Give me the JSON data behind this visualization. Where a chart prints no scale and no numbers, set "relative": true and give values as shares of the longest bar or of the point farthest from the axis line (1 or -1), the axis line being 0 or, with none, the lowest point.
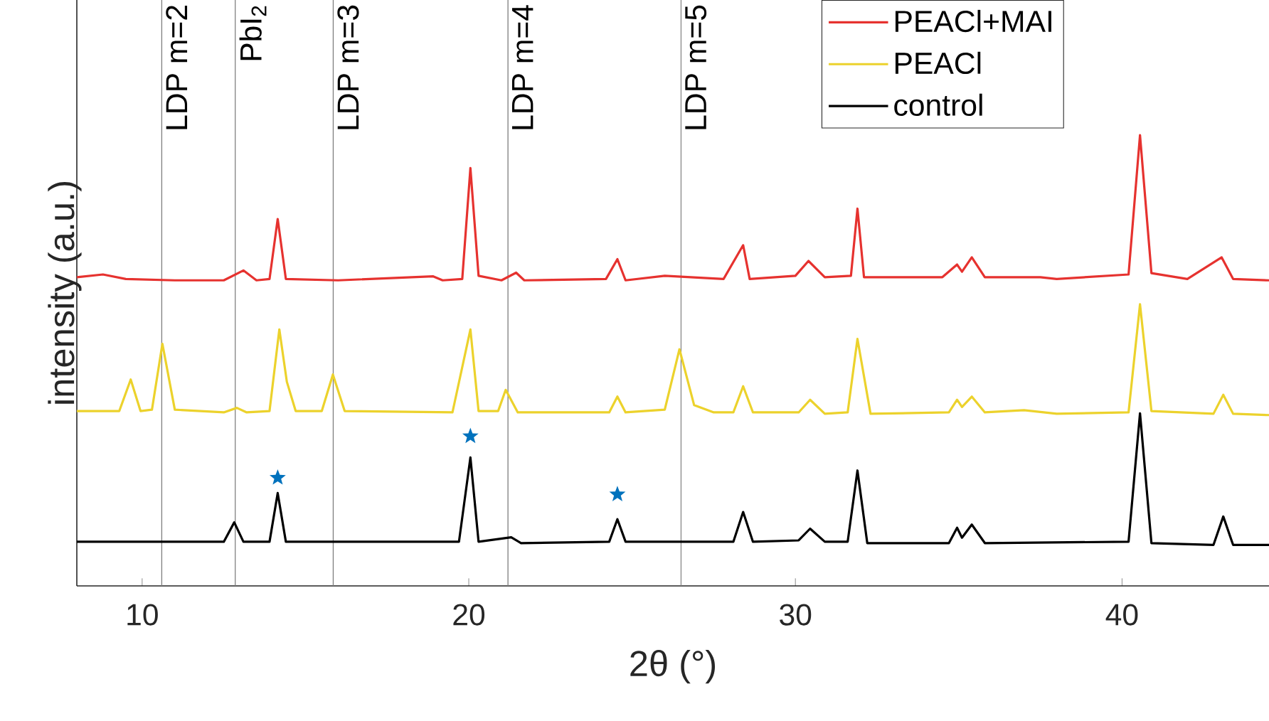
{
  "chart_data": {
    "type": "line",
    "relative": true,
    "xlabel": "2θ (°)",
    "ylabel": "intensity (a.u.)",
    "xlim": [
      8,
      44.5
    ],
    "xticks": [
      10,
      20,
      30,
      40
    ],
    "tick_labels": "x",
    "legend": "top right",
    "marker": "none",
    "ref_lines": [
      {
        "axis": "x",
        "value": 10.6,
        "color": "#808080"
      },
      {
        "axis": "x",
        "value": 12.85,
        "label": "PbI$_{2}$",
        "color": "#808080"
      },
      {
        "axis": "x",
        "value": 15.85,
        "color": "#808080"
      },
      {
        "axis": "x",
        "value": 21.2,
        "color": "#808080"
      },
      {
        "axis": "x",
        "value": 26.5,
        "color": "#808080"
      }
    ],
    "annotations": [
      {
        "text": "LDP m=2",
        "x": 10.6
      },
      {
        "text": "LDP m=3",
        "x": 15.85
      },
      {
        "text": "LDP m=4",
        "x": 21.2
      },
      {
        "text": "LDP m=5",
        "x": 26.5
      }
    ],
    "series": [
      {
        "name": "PEACl+MAI",
        "color": "#e6322f",
        "x": [
          8.0,
          8.8,
          9.5,
          11,
          12.5,
          13.1,
          13.5,
          13.9,
          14.15,
          14.4,
          16,
          18.9,
          19.2,
          19.8,
          20.05,
          20.3,
          21,
          21.45,
          21.7,
          24.2,
          24.55,
          24.8,
          26,
          27.8,
          28.4,
          28.6,
          30,
          30.4,
          30.9,
          31.7,
          31.9,
          32.1,
          34.5,
          34.95,
          35.1,
          35.4,
          35.8,
          37.5,
          38,
          40.2,
          40.55,
          40.9,
          42,
          43.05,
          43.4,
          44.5
        ],
        "values": [
          0.685,
          0.691,
          0.681,
          0.678,
          0.678,
          0.7,
          0.678,
          0.681,
          0.814,
          0.681,
          0.678,
          0.687,
          0.678,
          0.681,
          0.927,
          0.688,
          0.678,
          0.695,
          0.678,
          0.681,
          0.725,
          0.678,
          0.688,
          0.681,
          0.756,
          0.681,
          0.688,
          0.721,
          0.685,
          0.688,
          0.837,
          0.685,
          0.685,
          0.713,
          0.697,
          0.729,
          0.685,
          0.685,
          0.681,
          0.691,
          1.0,
          0.694,
          0.681,
          0.729,
          0.681,
          0.678
        ]
      },
      {
        "name": "PEACl",
        "color": "#ecd22c",
        "x": [
          8.0,
          9.3,
          9.65,
          9.95,
          10.3,
          10.62,
          11.0,
          12.5,
          12.9,
          13.2,
          13.9,
          14.2,
          14.43,
          14.7,
          15.5,
          15.84,
          16.2,
          19.5,
          20.05,
          20.3,
          20.9,
          21.13,
          21.5,
          24.3,
          24.55,
          24.8,
          26.0,
          26.45,
          26.9,
          27.5,
          28.1,
          28.4,
          28.7,
          30.1,
          30.45,
          30.9,
          31.6,
          31.9,
          32.3,
          34.7,
          34.95,
          35.1,
          35.4,
          35.8,
          37.0,
          38.0,
          40.2,
          40.55,
          40.9,
          42.8,
          43.1,
          43.4,
          44.5
        ],
        "values": [
          0.388,
          0.388,
          0.458,
          0.388,
          0.391,
          0.537,
          0.391,
          0.385,
          0.395,
          0.385,
          0.388,
          0.569,
          0.453,
          0.388,
          0.388,
          0.469,
          0.388,
          0.385,
          0.569,
          0.388,
          0.388,
          0.435,
          0.385,
          0.385,
          0.42,
          0.385,
          0.391,
          0.525,
          0.401,
          0.385,
          0.385,
          0.443,
          0.385,
          0.385,
          0.413,
          0.382,
          0.385,
          0.548,
          0.382,
          0.385,
          0.413,
          0.397,
          0.42,
          0.385,
          0.39,
          0.382,
          0.385,
          0.625,
          0.388,
          0.382,
          0.424,
          0.382,
          0.379
        ]
      },
      {
        "name": "control",
        "color": "#000000",
        "x": [
          8.0,
          12.5,
          12.82,
          13.1,
          13.9,
          14.15,
          14.4,
          19.7,
          20.05,
          20.3,
          21.3,
          21.6,
          24.3,
          24.55,
          24.8,
          28.1,
          28.4,
          28.7,
          30.1,
          30.45,
          30.9,
          31.6,
          31.9,
          32.2,
          34.7,
          34.95,
          35.1,
          35.4,
          35.8,
          40.2,
          40.55,
          40.9,
          42.8,
          43.1,
          43.4,
          44.5
        ],
        "values": [
          0.098,
          0.098,
          0.141,
          0.098,
          0.098,
          0.206,
          0.098,
          0.098,
          0.285,
          0.098,
          0.108,
          0.095,
          0.098,
          0.148,
          0.098,
          0.098,
          0.164,
          0.098,
          0.101,
          0.127,
          0.098,
          0.098,
          0.256,
          0.095,
          0.095,
          0.129,
          0.107,
          0.136,
          0.095,
          0.098,
          0.383,
          0.095,
          0.091,
          0.154,
          0.091,
          0.091
        ]
      },
      {
        "type": "scatter",
        "marker": "star",
        "color": "#0072bd",
        "x": [
          14.15,
          20.05,
          24.55
        ],
        "values": [
          0.24,
          0.332,
          0.203
        ]
      }
    ]
  }
}
